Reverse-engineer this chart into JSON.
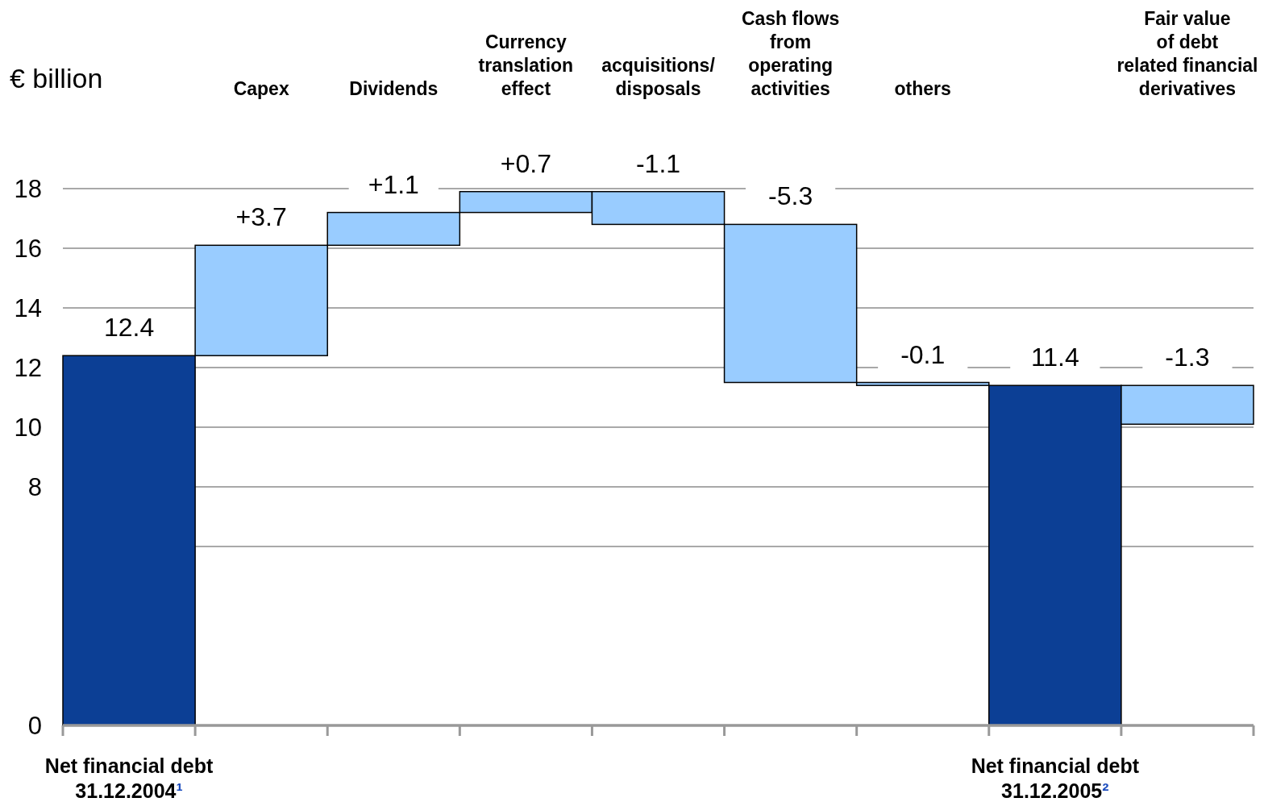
{
  "chart_data": {
    "type": "bar",
    "ylabel": "€ billion",
    "categories": [
      "Net financial debt\n31.12.2004¹",
      "Capex",
      "Dividends",
      "Currency\ntranslation\neffect",
      "acquisitions/\ndisposals",
      "Cash flows\nfrom\noperating\nactivities",
      "others",
      "Net financial debt\n31.12.2005²",
      "Fair value\nof debt\nrelated financial\nderivatives"
    ],
    "values": [
      12.4,
      3.7,
      1.1,
      0.7,
      -1.1,
      -5.3,
      -0.1,
      11.4,
      -1.3
    ],
    "base": [
      0,
      12.4,
      16.1,
      17.2,
      17.9,
      16.8,
      11.5,
      0,
      11.4
    ],
    "colors": [
      "#0c3f95",
      "#99ccff",
      "#99ccff",
      "#99ccff",
      "#99ccff",
      "#99ccff",
      "#99ccff",
      "#0c3f95",
      "#99ccff"
    ],
    "value_labels": [
      "12.4",
      "+3.7",
      "+1.1",
      "+0.7",
      "-1.1",
      "-5.3",
      "-0.1",
      "11.4",
      "-1.3"
    ],
    "ylim": [
      0,
      18
    ],
    "yticks": [
      0,
      {
        "value": 6,
        "label": null
      },
      8,
      10,
      12,
      14,
      16,
      18
    ],
    "grid": "y"
  }
}
